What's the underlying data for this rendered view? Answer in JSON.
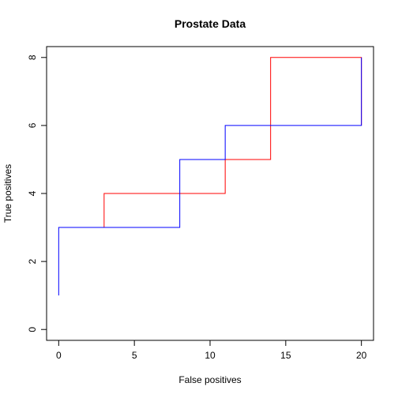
{
  "chart_data": {
    "type": "line",
    "step": true,
    "title": "Prostate Data",
    "xlabel": "False positives",
    "ylabel": "True positives",
    "xlim": [
      -0.8,
      20.8
    ],
    "ylim": [
      -0.32,
      8.32
    ],
    "xticks": [
      0,
      5,
      10,
      15,
      20
    ],
    "yticks": [
      0,
      2,
      4,
      6,
      8
    ],
    "grid": false,
    "series": [
      {
        "color": "#ff0000",
        "x": [
          0,
          3,
          3,
          11,
          11,
          14,
          14,
          20,
          20
        ],
        "y": [
          3,
          3,
          4,
          4,
          5,
          5,
          8,
          8,
          6
        ]
      },
      {
        "color": "#0000ff",
        "x": [
          0,
          0,
          8,
          8,
          11,
          11,
          20,
          20
        ],
        "y": [
          1,
          3,
          3,
          5,
          5,
          6,
          6,
          8
        ]
      }
    ]
  }
}
